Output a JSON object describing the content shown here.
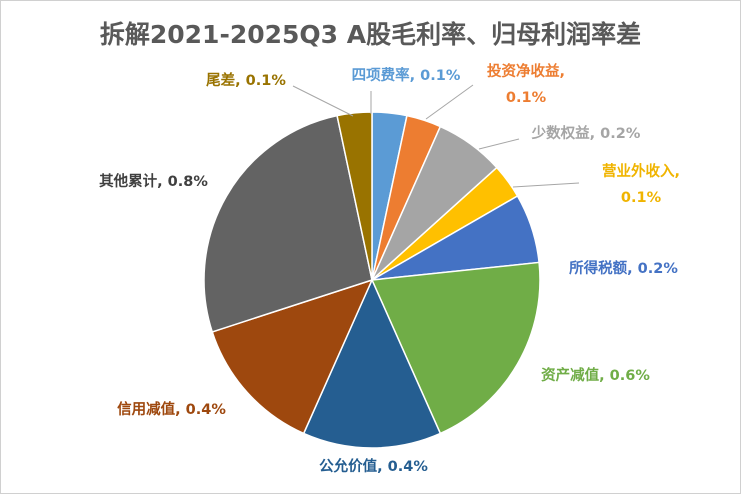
{
  "chart_data": {
    "type": "pie",
    "title": "拆解2021-2025Q3 A股毛利率、归母利润率差",
    "start": "12 o'clock, clockwise",
    "slices": [
      {
        "label": "四项费率",
        "value": 0.1,
        "text": "0.1%",
        "color": "#5B9BD5",
        "label_color": "#5B9BD5"
      },
      {
        "label": "投资净收益",
        "value": 0.1,
        "text": "0.1%",
        "color": "#ED7D31",
        "label_color": "#ED7D31"
      },
      {
        "label": "少数权益",
        "value": 0.2,
        "text": "0.2%",
        "color": "#A5A5A5",
        "label_color": "#A5A5A5"
      },
      {
        "label": "营业外收入",
        "value": 0.1,
        "text": "0.1%",
        "color": "#FFC000",
        "label_color": "#F0B400"
      },
      {
        "label": "所得税额",
        "value": 0.2,
        "text": "0.2%",
        "color": "#4472C4",
        "label_color": "#4472C4"
      },
      {
        "label": "资产减值",
        "value": 0.6,
        "text": "0.6%",
        "color": "#70AD47",
        "label_color": "#70AD47"
      },
      {
        "label": "公允价值",
        "value": 0.4,
        "text": "0.4%",
        "color": "#255E91",
        "label_color": "#255E91"
      },
      {
        "label": "信用减值",
        "value": 0.4,
        "text": "0.4%",
        "color": "#9E480E",
        "label_color": "#9E480E"
      },
      {
        "label": "其他累计",
        "value": 0.8,
        "text": "0.8%",
        "color": "#636363",
        "label_color": "#404040"
      },
      {
        "label": "尾差",
        "value": 0.1,
        "text": "0.1%",
        "color": "#997300",
        "label_color": "#997300"
      }
    ],
    "legend": "none (data labels with leader lines)"
  }
}
